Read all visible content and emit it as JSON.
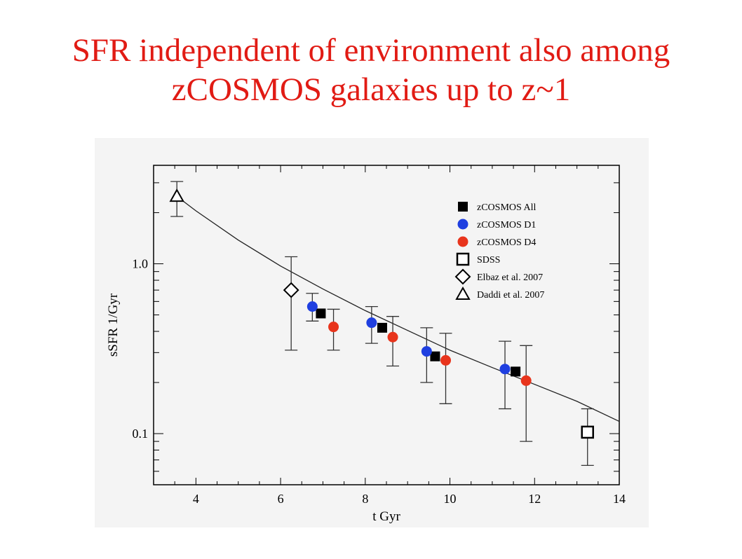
{
  "slide": {
    "title_line1": "SFR independent of environment also among",
    "title_line2": "zCOSMOS galaxies up to z~1"
  },
  "colors": {
    "title": "#e11b14",
    "zcosmos_all": "#000000",
    "zcosmos_d1": "#1f3fe0",
    "zcosmos_d4": "#e8341c",
    "background_panel": "#f4f4f4"
  },
  "chart_data": {
    "type": "scatter",
    "xlabel": "t  Gyr",
    "ylabel": "sSFR  1/Gyr",
    "xlim": [
      3,
      14
    ],
    "ylim": [
      0.05,
      3.8
    ],
    "ylog": true,
    "x_ticks": [
      4,
      6,
      8,
      10,
      12,
      14
    ],
    "y_tick_labels": [
      {
        "value": 1.0,
        "label": "1.0"
      },
      {
        "value": 0.1,
        "label": "0.1"
      }
    ],
    "grid": false,
    "legend_position": "top-right",
    "series": [
      {
        "name": "zCOSMOS All",
        "marker": "filled-square",
        "color": "#000000",
        "points": [
          {
            "x": 6.95,
            "y": 0.51
          },
          {
            "x": 8.4,
            "y": 0.42
          },
          {
            "x": 9.65,
            "y": 0.285
          },
          {
            "x": 11.55,
            "y": 0.232
          }
        ]
      },
      {
        "name": "zCOSMOS D1",
        "marker": "filled-circle",
        "color": "#1f3fe0",
        "points": [
          {
            "x": 6.75,
            "y": 0.56,
            "err": [
              0.46,
              0.67
            ]
          },
          {
            "x": 8.15,
            "y": 0.45,
            "err": [
              0.34,
              0.56
            ]
          },
          {
            "x": 9.45,
            "y": 0.305,
            "err": [
              0.2,
              0.42
            ]
          },
          {
            "x": 11.3,
            "y": 0.24,
            "err": [
              0.14,
              0.35
            ]
          }
        ]
      },
      {
        "name": "zCOSMOS D4",
        "marker": "filled-circle",
        "color": "#e8341c",
        "points": [
          {
            "x": 7.25,
            "y": 0.425,
            "err": [
              0.31,
              0.54
            ]
          },
          {
            "x": 8.65,
            "y": 0.37,
            "err": [
              0.25,
              0.49
            ]
          },
          {
            "x": 9.9,
            "y": 0.27,
            "err": [
              0.15,
              0.39
            ]
          },
          {
            "x": 11.8,
            "y": 0.205,
            "err": [
              0.09,
              0.33
            ]
          }
        ]
      },
      {
        "name": "SDSS",
        "marker": "open-square",
        "color": "#000000",
        "points": [
          {
            "x": 13.25,
            "y": 0.102,
            "err": [
              0.065,
              0.14
            ]
          }
        ]
      },
      {
        "name": "Elbaz et al. 2007",
        "marker": "open-diamond",
        "color": "#000000",
        "points": [
          {
            "x": 6.25,
            "y": 0.7,
            "err": [
              0.31,
              1.1
            ]
          }
        ]
      },
      {
        "name": "Daddi et al. 2007",
        "marker": "open-triangle",
        "color": "#000000",
        "points": [
          {
            "x": 3.55,
            "y": 2.5,
            "err": [
              1.9,
              3.05
            ]
          }
        ]
      }
    ],
    "fit_curve": {
      "description": "solid fit line",
      "points": [
        [
          3.5,
          2.55
        ],
        [
          4,
          2.05
        ],
        [
          5,
          1.38
        ],
        [
          6,
          0.97
        ],
        [
          7,
          0.71
        ],
        [
          8,
          0.53
        ],
        [
          9,
          0.405
        ],
        [
          10,
          0.31
        ],
        [
          11,
          0.245
        ],
        [
          12,
          0.195
        ],
        [
          13,
          0.155
        ],
        [
          14,
          0.118
        ]
      ]
    }
  }
}
